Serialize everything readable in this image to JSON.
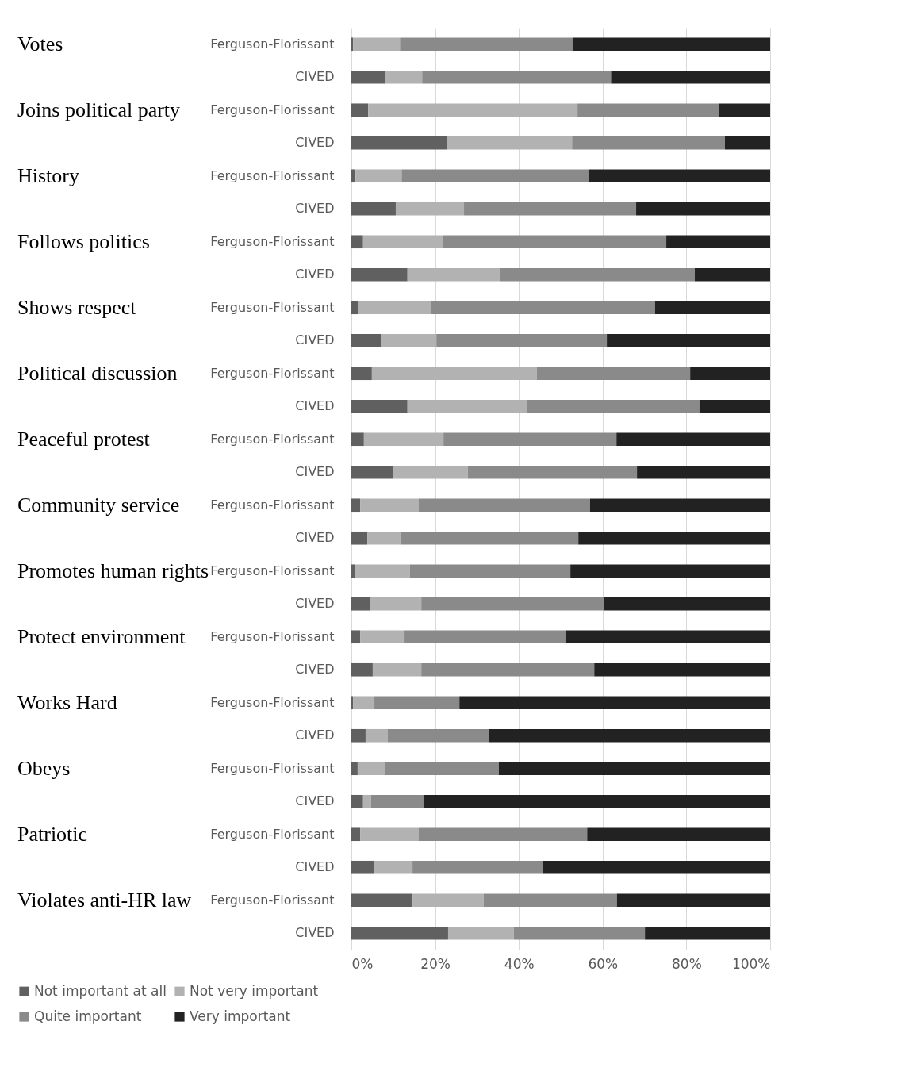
{
  "chart_data": {
    "type": "bar",
    "orientation": "horizontal",
    "stacked": true,
    "categories": [
      "Ferguson-Florissant",
      "CIVED",
      "Ferguson-Florissant",
      "CIVED",
      "Ferguson-Florissant",
      "CIVED",
      "Ferguson-Florissant",
      "CIVED",
      "Ferguson-Florissant",
      "CIVED",
      "Ferguson-Florissant",
      "CIVED",
      "Ferguson-Florissant",
      "CIVED",
      "Ferguson-Florissant",
      "CIVED",
      "Ferguson-Florissant",
      "CIVED",
      "Ferguson-Florissant",
      "CIVED",
      "Ferguson-Florissant",
      "CIVED",
      "Ferguson-Florissant",
      "CIVED",
      "Ferguson-Florissant",
      "CIVED",
      "Ferguson-Florissant",
      "CIVED"
    ],
    "series": [
      {
        "name": "Not important at all",
        "color": "#606060",
        "values": [
          0.4,
          8,
          4,
          22.9,
          1,
          10.6,
          2.8,
          13.4,
          1.6,
          7.2,
          4.9,
          13.4,
          3,
          10,
          2.1,
          3.8,
          0.9,
          4.5,
          2.1,
          5.1,
          0.4,
          3.4,
          1.5,
          2.8,
          2.1,
          5.3,
          14.6,
          23.1
        ]
      },
      {
        "name": "Not very important",
        "color": "#b2b2b2",
        "values": [
          11.2,
          8.9,
          50,
          29.8,
          11,
          16.3,
          19,
          22,
          17.5,
          13.1,
          39.4,
          28.5,
          19,
          17.8,
          14,
          7.9,
          13.1,
          12.2,
          10.6,
          11.6,
          5.1,
          5.3,
          6.5,
          1.9,
          14,
          9.3,
          17,
          15.7
        ]
      },
      {
        "name": "Quite important",
        "color": "#8a8a8a",
        "values": [
          41.2,
          45.1,
          33.7,
          36.5,
          44.6,
          41.1,
          53.4,
          46.6,
          53.4,
          40.7,
          36.6,
          41.2,
          41.3,
          40.4,
          40.9,
          42.5,
          38.3,
          43.7,
          38.4,
          41.3,
          20.3,
          24.1,
          27.2,
          12.5,
          40.2,
          31.2,
          31.8,
          31.3
        ]
      },
      {
        "name": "Very important",
        "color": "#222222",
        "values": [
          47.2,
          38,
          12.3,
          10.8,
          43.4,
          32,
          24.8,
          18,
          27.5,
          39,
          19.1,
          16.9,
          36.7,
          31.8,
          43,
          45.8,
          47.7,
          39.6,
          48.9,
          42,
          74.2,
          67.2,
          64.8,
          82.8,
          43.7,
          54.2,
          36.6,
          29.9
        ]
      }
    ],
    "xlim": [
      0,
      100
    ],
    "xticks": [
      {
        "value": 0,
        "label": "0%"
      },
      {
        "value": 20,
        "label": "20%"
      },
      {
        "value": 40,
        "label": "40%"
      },
      {
        "value": 60,
        "label": "60%"
      },
      {
        "value": 80,
        "label": "80%"
      },
      {
        "value": 100,
        "label": "100%"
      }
    ],
    "grid": "x",
    "legend": "bottom",
    "annotations": [
      "Votes",
      "Joins political party",
      "History",
      "Follows politics",
      "Shows respect",
      "Political discussion",
      "Peaceful protest",
      "Community service",
      "Promotes human rights",
      "Protect environment",
      "Works Hard",
      "Obeys",
      "Patriotic",
      "Violates anti-HR law"
    ]
  }
}
